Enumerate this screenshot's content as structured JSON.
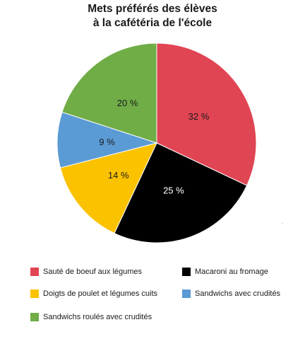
{
  "chart_data": {
    "type": "pie",
    "title": [
      "Mets préférés des élèves",
      "à la cafétéria de l'école"
    ],
    "slices": [
      {
        "label": "Sauté de boeuf aux légumes",
        "value": 32,
        "display": "32 %",
        "color": "#e04553"
      },
      {
        "label": "Macaroni au fromage",
        "value": 25,
        "display": "25 %",
        "color": "#000000"
      },
      {
        "label": "Doigts de poulet et légumes cuits",
        "value": 14,
        "display": "14 %",
        "color": "#fbc200"
      },
      {
        "label": "Sandwichs avec crudités",
        "value": 9,
        "display": "9 %",
        "color": "#5b9bd5"
      },
      {
        "label": "Sandwichs roulés avec crudités",
        "value": 20,
        "display": "20 %",
        "color": "#70ad47"
      }
    ],
    "legend_order": [
      0,
      1,
      2,
      3,
      4
    ],
    "legend_placement": "bottom"
  }
}
